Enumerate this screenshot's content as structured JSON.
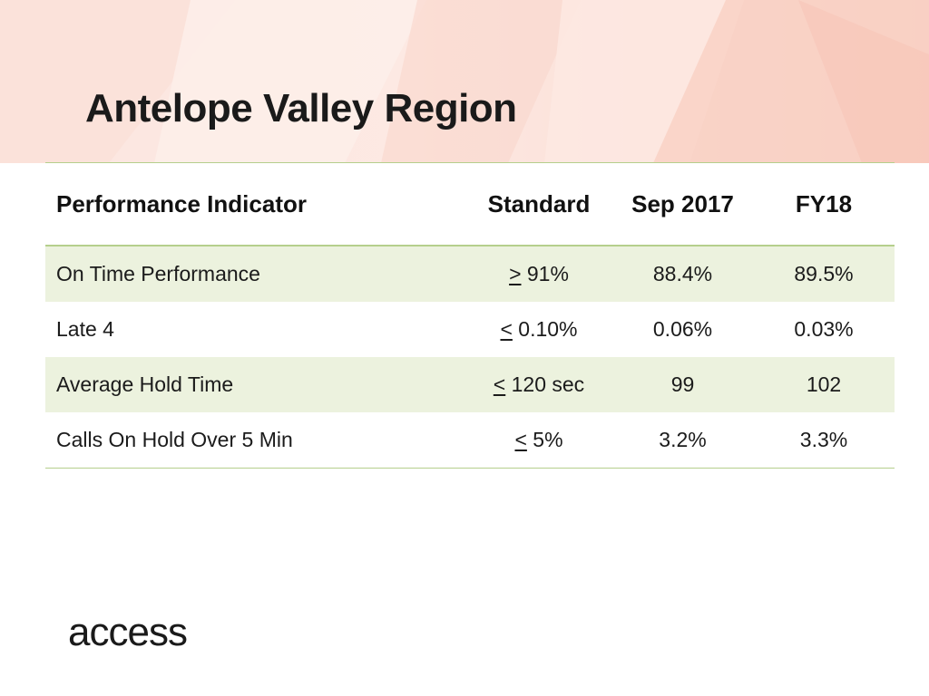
{
  "slide": {
    "title": "Antelope Valley Region",
    "logo_text": "access",
    "colors": {
      "banner": "#fbe6e0",
      "rule": "#b5cf8c",
      "row_shade": "#ecf2de"
    }
  },
  "table": {
    "headers": [
      "Performance Indicator",
      "Standard",
      "Sep 2017",
      "FY18"
    ],
    "rows": [
      {
        "indicator": "On Time Performance",
        "op": ">",
        "standard": " 91%",
        "sep2017": "88.4%",
        "fy18": "89.5%"
      },
      {
        "indicator": "Late 4",
        "op": "<",
        "standard": " 0.10%",
        "sep2017": "0.06%",
        "fy18": "0.03%"
      },
      {
        "indicator": "Average Hold Time",
        "op": "<",
        "standard": " 120 sec",
        "sep2017": "99",
        "fy18": "102"
      },
      {
        "indicator": "Calls On Hold Over 5 Min",
        "op": "<",
        "standard": " 5%",
        "sep2017": "3.2%",
        "fy18": "3.3%"
      }
    ]
  }
}
